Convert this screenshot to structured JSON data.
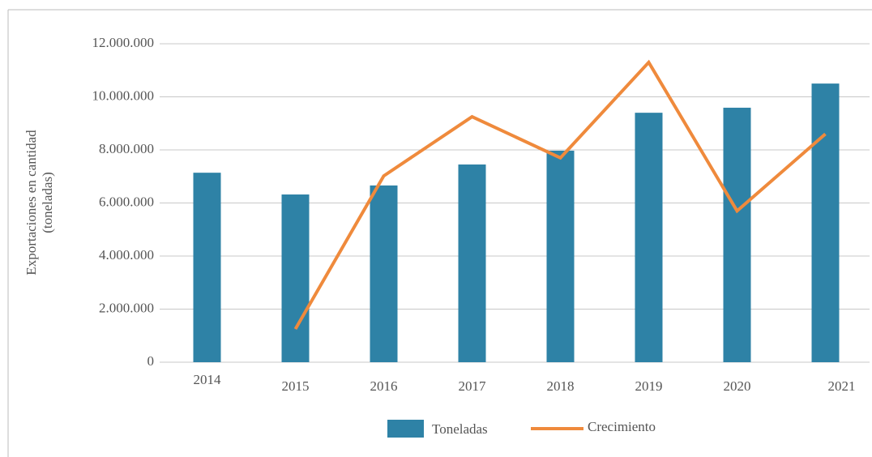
{
  "chart_data": {
    "type": "bar_line",
    "y_label": [
      "Exportaciones en cantidad",
      "(toneladas)"
    ],
    "categories": [
      "2014",
      "2015",
      "2016",
      "2017",
      "2018",
      "2019",
      "2020",
      "2021"
    ],
    "series": [
      {
        "name": "Toneladas",
        "type": "bar",
        "color": "#2e82a6",
        "values": [
          7140000,
          6320000,
          6660000,
          7450000,
          7970000,
          9400000,
          9590000,
          10500000
        ]
      },
      {
        "name": "Crecimiento",
        "type": "line",
        "color": "#ef8a3c",
        "values": [
          null,
          1250000,
          7020000,
          9250000,
          7700000,
          11300000,
          5700000,
          8600000
        ]
      }
    ],
    "ylim": [
      0,
      12000000
    ],
    "yticks": [
      0,
      {
        "value": 2000000,
        "label": "2.000.000"
      },
      {
        "value": 4000000,
        "label": "4.000.000"
      },
      {
        "value": 6000000,
        "label": "6.000.000"
      },
      {
        "value": 8000000,
        "label": "8.000.000"
      },
      {
        "value": 10000000,
        "label": "10.000.000"
      },
      {
        "value": 12000000,
        "label": "12.000.000"
      }
    ],
    "grid": true,
    "legend": "bottom"
  }
}
